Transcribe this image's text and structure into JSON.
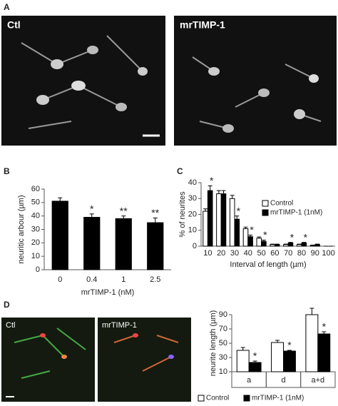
{
  "panel_labels": [
    "A",
    "B",
    "C",
    "D"
  ],
  "image_labels": [
    "Ctl",
    "mrTIMP-1",
    "Ctl",
    "mrTIMP-1"
  ],
  "chart_data": [
    {
      "type": "bar",
      "ylabel": "neuritic arbour (µm)",
      "xlabel": "mrTIMP-1 (nM)",
      "categories": [
        "0",
        "0.4",
        "1",
        "2.5"
      ],
      "values": [
        51,
        39,
        38,
        35
      ],
      "errors": [
        2.5,
        2.5,
        2,
        3.5
      ],
      "annotations": [
        null,
        "*",
        "**",
        "**"
      ],
      "color": "#000000",
      "ylim": [
        0,
        60
      ],
      "yticks": [
        0,
        10,
        20,
        30,
        40,
        50,
        60
      ]
    },
    {
      "type": "bar",
      "ylabel": "% of neurites",
      "xlabel": "Interval of length (µm)",
      "categories": [
        "10",
        "20",
        "30",
        "40",
        "50",
        "60",
        "70",
        "80",
        "90",
        "100"
      ],
      "series": [
        {
          "name": "Control",
          "color": "#ffffff",
          "values": [
            22,
            33,
            30,
            11,
            5,
            1,
            1,
            1,
            0.5,
            0
          ],
          "errors": [
            1.5,
            2,
            2,
            1,
            0.8,
            0.3,
            0.3,
            0.3,
            0.2,
            0
          ]
        },
        {
          "name": "mrTIMP-1 (1nM)",
          "color": "#000000",
          "values": [
            35,
            33,
            17,
            6,
            3,
            1,
            2,
            2,
            1,
            0
          ],
          "errors": [
            3,
            2,
            2,
            1,
            0.8,
            0.3,
            0.4,
            0.4,
            0.3,
            0
          ],
          "annotations": [
            "*",
            null,
            "*",
            "*",
            "*",
            null,
            "*",
            "*",
            null,
            null
          ]
        }
      ],
      "legend": "upper right",
      "ylim": [
        0,
        40
      ],
      "yticks": [
        0,
        10,
        20,
        30,
        40
      ]
    },
    {
      "type": "bar",
      "ylabel": "neurite length (µm)",
      "categories": [
        "a",
        "d",
        "a+d"
      ],
      "series": [
        {
          "name": "Control",
          "color": "#ffffff",
          "values": [
            40,
            51,
            90
          ],
          "errors": [
            4,
            3,
            9
          ]
        },
        {
          "name": "mrTIMP-1 (1nM)",
          "color": "#000000",
          "values": [
            23,
            39,
            63
          ],
          "errors": [
            2,
            1,
            3
          ],
          "annotations": [
            "*",
            "*",
            "*"
          ]
        }
      ],
      "legend": "bottom",
      "ylim": [
        10,
        90
      ],
      "yticks": [
        10,
        30,
        50,
        70,
        90
      ]
    }
  ]
}
